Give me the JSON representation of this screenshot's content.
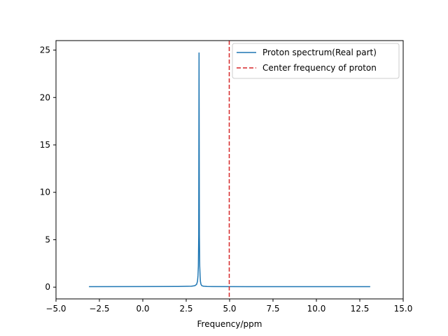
{
  "chart_data": {
    "type": "line",
    "title": "",
    "xlabel": "Frequency/ppm",
    "ylabel": "",
    "xlim": [
      -5,
      15
    ],
    "ylim": [
      -1.24,
      26.0
    ],
    "grid": false,
    "legend_position": "upper-right",
    "xticks": [
      -5.0,
      -2.5,
      0.0,
      2.5,
      5.0,
      7.5,
      10.0,
      12.5,
      15.0
    ],
    "xtick_labels": [
      "−5.0",
      "−2.5",
      "0.0",
      "2.5",
      "5.0",
      "7.5",
      "10.0",
      "12.5",
      "15.0"
    ],
    "yticks": [
      0,
      5,
      10,
      15,
      20,
      25
    ],
    "ytick_labels": [
      "0",
      "5",
      "10",
      "15",
      "20",
      "25"
    ],
    "series": [
      {
        "name": "Proton spectrum(Real part)",
        "kind": "line",
        "color": "#1f77b4",
        "style": "solid",
        "x": [
          -3.1,
          0.0,
          2.0,
          2.8,
          3.0,
          3.1,
          3.15,
          3.18,
          3.2,
          3.22,
          3.24,
          3.26,
          3.28,
          3.3,
          3.32,
          3.35,
          3.4,
          3.5,
          3.7,
          4.0,
          6.0,
          13.1
        ],
        "y": [
          0.05,
          0.06,
          0.07,
          0.1,
          0.15,
          0.3,
          0.6,
          1.2,
          2.2,
          5.5,
          24.7,
          5.5,
          2.2,
          1.2,
          0.6,
          0.3,
          0.15,
          0.1,
          0.07,
          0.06,
          0.05,
          0.05
        ]
      },
      {
        "name": "Center frequency of proton",
        "kind": "vline",
        "color": "#d62728",
        "style": "dashed",
        "x": 4.98
      }
    ]
  }
}
